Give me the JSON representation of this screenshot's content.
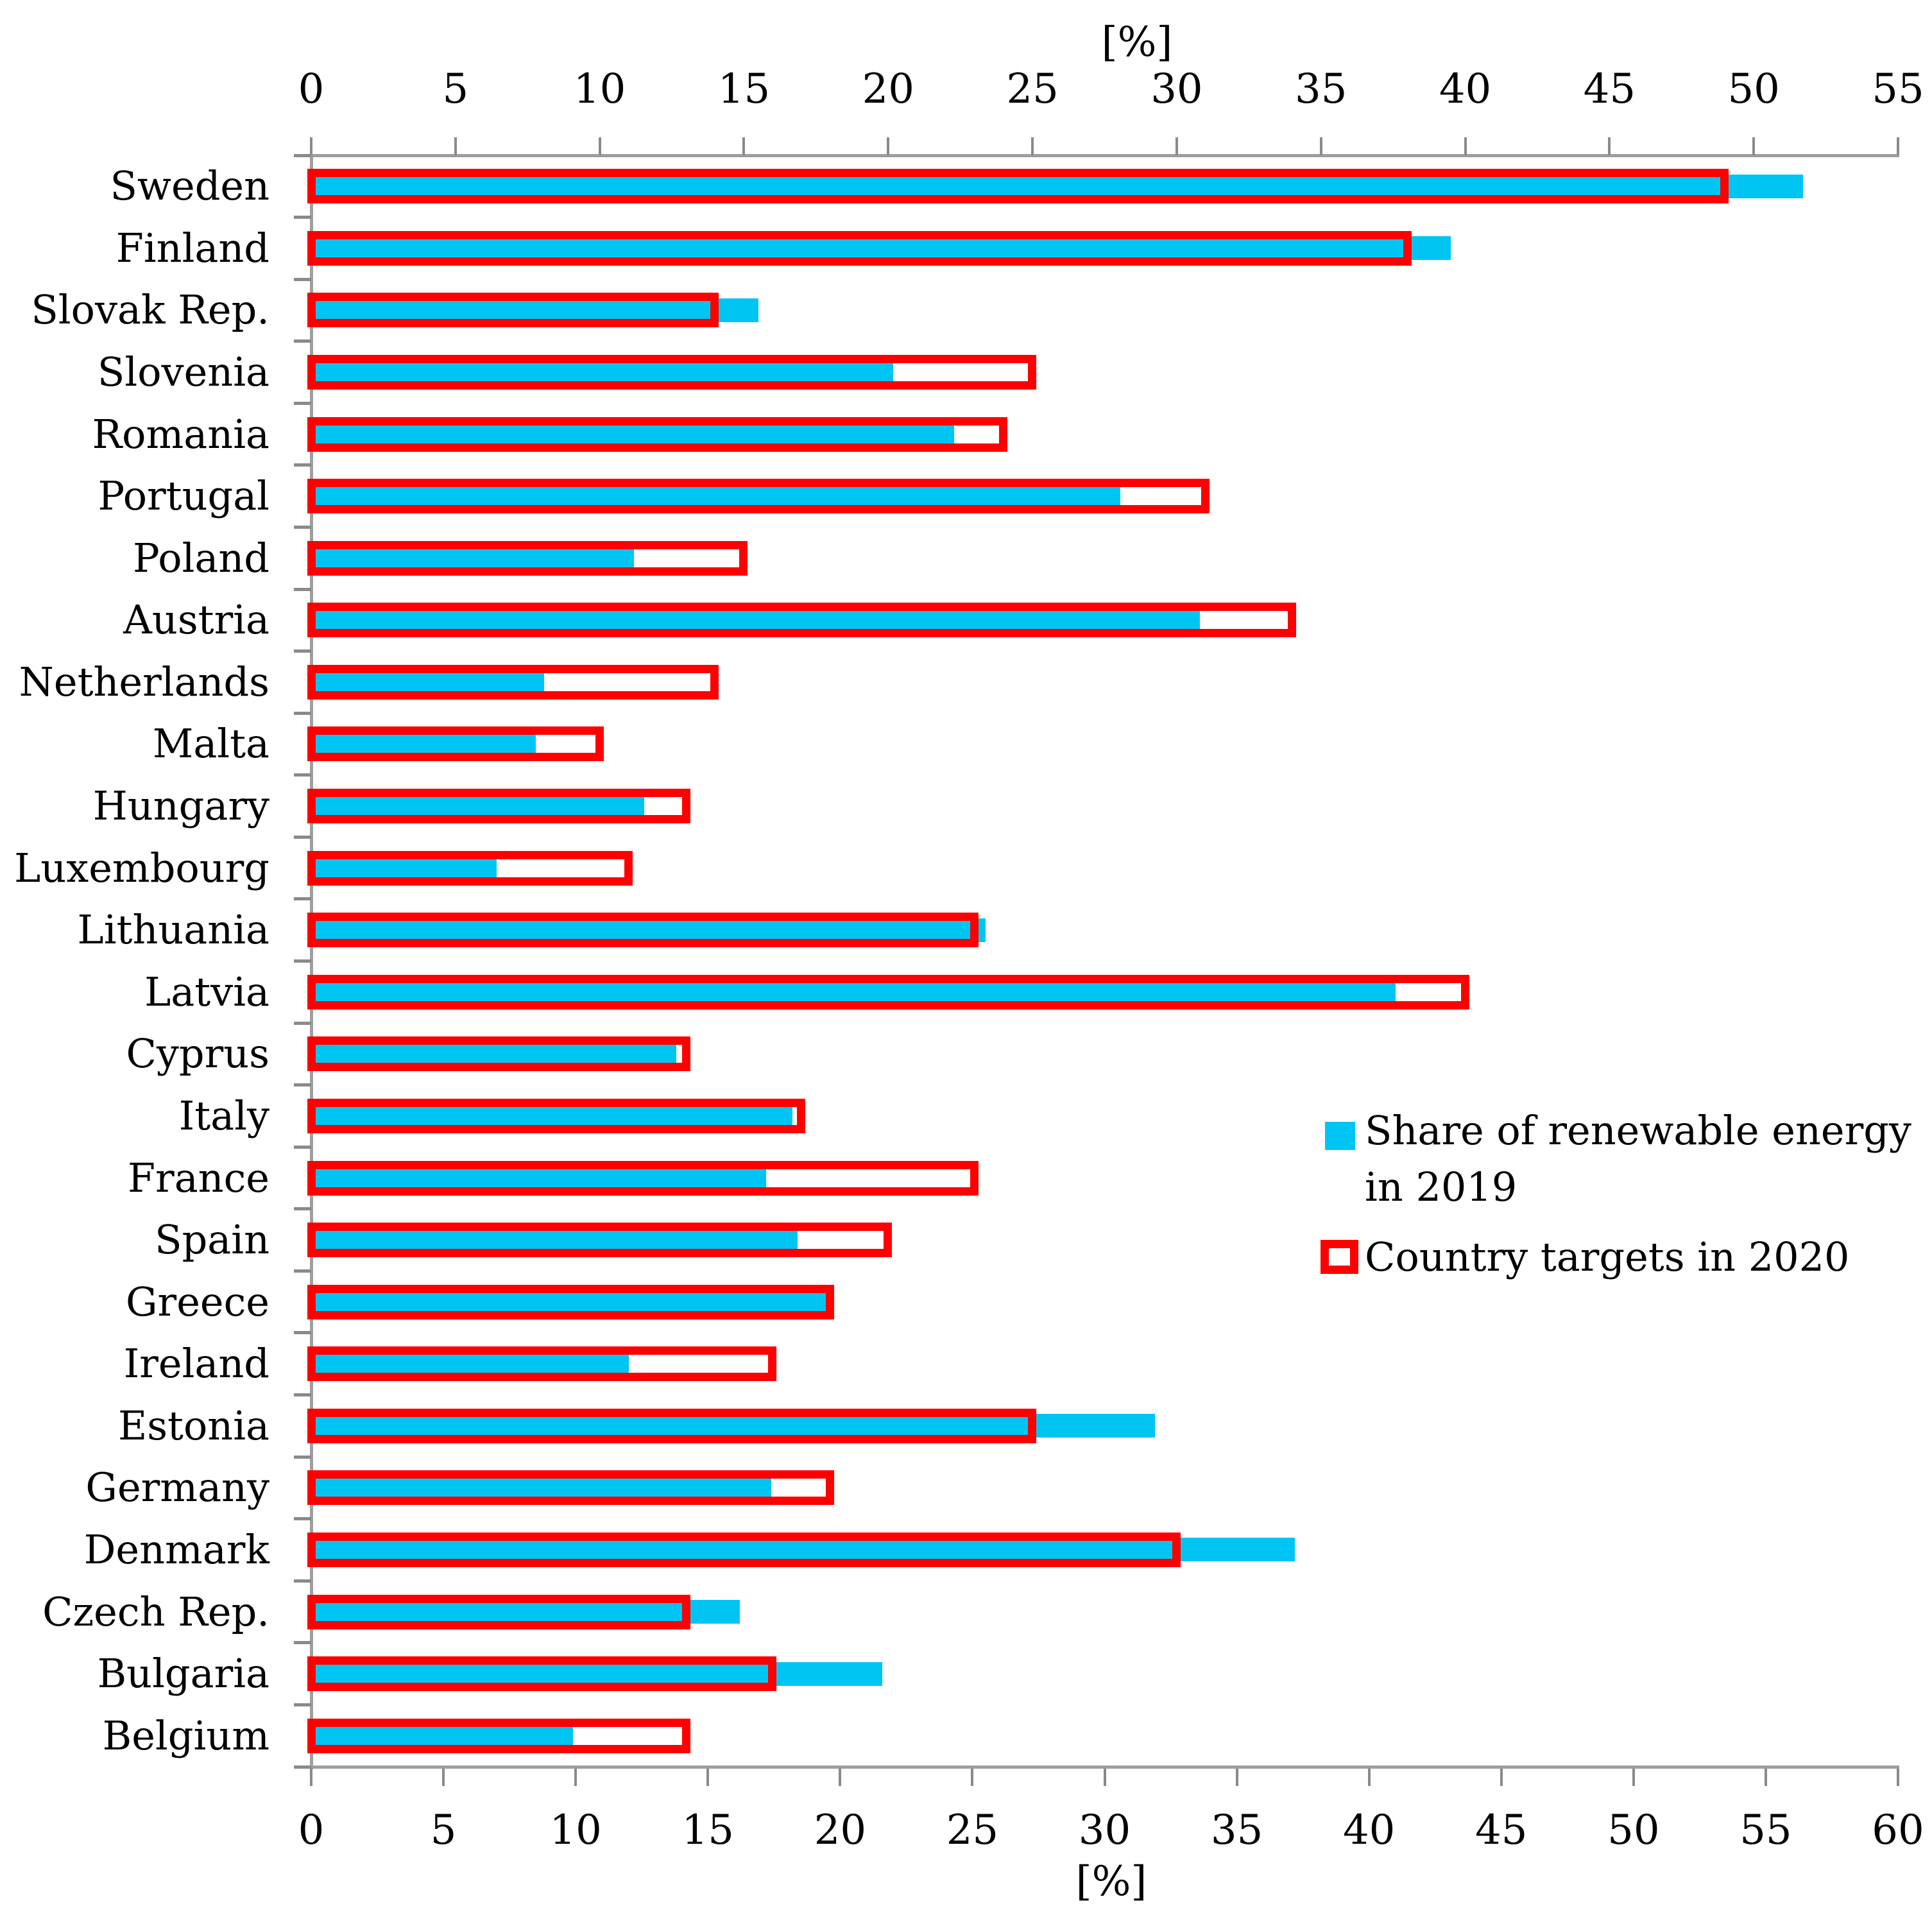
{
  "chart_data": {
    "type": "bar",
    "orientation": "horizontal",
    "grid": false,
    "top_axis": {
      "title": "[%]",
      "min": 0,
      "max": 55,
      "tick_step": 5,
      "ticks": [
        0,
        5,
        10,
        15,
        20,
        25,
        30,
        35,
        40,
        45,
        50,
        55
      ],
      "assigned_series": "Country targets in 2020"
    },
    "bottom_axis": {
      "title": "[%]",
      "min": 0,
      "max": 60,
      "tick_step": 5,
      "ticks": [
        0,
        5,
        10,
        15,
        20,
        25,
        30,
        35,
        40,
        45,
        50,
        55,
        60
      ],
      "assigned_series": "Share of renewable energy in 2019"
    },
    "categories": [
      "Sweden",
      "Finland",
      "Slovak Rep.",
      "Slovenia",
      "Romania",
      "Portugal",
      "Poland",
      "Austria",
      "Netherlands",
      "Malta",
      "Hungary",
      "Luxembourg",
      "Lithuania",
      "Latvia",
      "Cyprus",
      "Italy",
      "France",
      "Spain",
      "Greece",
      "Ireland",
      "Estonia",
      "Germany",
      "Denmark",
      "Czech Rep.",
      "Bulgaria",
      "Belgium"
    ],
    "series": [
      {
        "name": "Share of renewable energy in 2019",
        "style": "filled-bar",
        "color": "#00C5F3",
        "axis": "bottom",
        "values": [
          56.4,
          43.1,
          16.9,
          22.0,
          24.3,
          30.6,
          12.2,
          33.6,
          8.8,
          8.5,
          12.6,
          7.0,
          25.5,
          41.0,
          13.8,
          18.2,
          17.2,
          18.4,
          19.7,
          12.0,
          31.9,
          17.4,
          37.2,
          16.2,
          21.6,
          9.9
        ]
      },
      {
        "name": "Country targets in 2020",
        "style": "outline-bar",
        "color": "#FF0000",
        "axis": "top",
        "values": [
          49,
          38,
          14,
          25,
          24,
          31,
          15,
          34,
          14,
          10,
          13,
          11,
          23,
          40,
          13,
          17,
          23,
          20,
          18,
          16,
          25,
          18,
          30,
          13,
          16,
          13
        ]
      }
    ],
    "legend": {
      "position": "center-right",
      "entries": [
        {
          "label": "Share of renewable energy in 2019",
          "label_lines": [
            "Share of renewable energy",
            "in 2019"
          ],
          "swatch": "filled-blue"
        },
        {
          "label": "Country targets in 2020",
          "label_lines": [
            "Country targets in 2020"
          ],
          "swatch": "outlined-red"
        }
      ]
    }
  },
  "colors": {
    "bar_fill_blue": "#00C5F3",
    "bar_outline_red": "#FF0000",
    "axis_line": "#9E9E9E",
    "tick": "#8A8A8A",
    "text": "#000000",
    "background": "#FFFFFF"
  }
}
